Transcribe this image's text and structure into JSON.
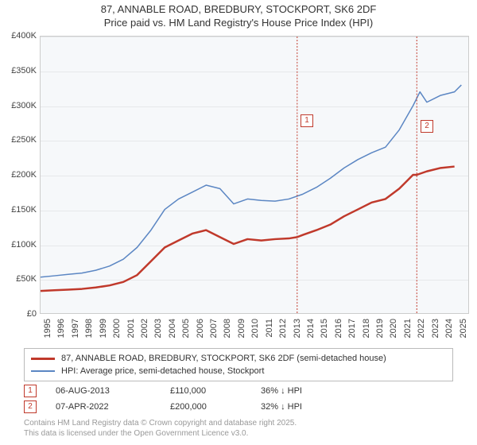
{
  "title_line1": "87, ANNABLE ROAD, BREDBURY, STOCKPORT, SK6 2DF",
  "title_line2": "Price paid vs. HM Land Registry's House Price Index (HPI)",
  "chart": {
    "type": "line",
    "background_color": "#f6f8fa",
    "grid_color": "#e6e8ea",
    "border_color": "#cccccc",
    "xlim": [
      1995,
      2026
    ],
    "ylim": [
      0,
      400000
    ],
    "ytick_step": 50000,
    "y_ticks": [
      "£0",
      "£50K",
      "£100K",
      "£150K",
      "£200K",
      "£250K",
      "£300K",
      "£350K",
      "£400K"
    ],
    "x_ticks": [
      "1995",
      "1996",
      "1997",
      "1998",
      "1999",
      "2000",
      "2001",
      "2002",
      "2003",
      "2004",
      "2005",
      "2006",
      "2007",
      "2008",
      "2009",
      "2010",
      "2011",
      "2012",
      "2013",
      "2014",
      "2015",
      "2016",
      "2017",
      "2018",
      "2019",
      "2020",
      "2021",
      "2022",
      "2023",
      "2024",
      "2025"
    ],
    "series": [
      {
        "name": "price_paid",
        "label": "87, ANNABLE ROAD, BREDBURY, STOCKPORT, SK6 2DF (semi-detached house)",
        "color": "#c0392b",
        "line_width": 2.5,
        "data": [
          [
            1995,
            32000
          ],
          [
            1996,
            33000
          ],
          [
            1997,
            34000
          ],
          [
            1998,
            35000
          ],
          [
            1999,
            37000
          ],
          [
            2000,
            40000
          ],
          [
            2001,
            45000
          ],
          [
            2002,
            55000
          ],
          [
            2003,
            75000
          ],
          [
            2004,
            95000
          ],
          [
            2005,
            105000
          ],
          [
            2006,
            115000
          ],
          [
            2007,
            120000
          ],
          [
            2008,
            110000
          ],
          [
            2009,
            100000
          ],
          [
            2010,
            107000
          ],
          [
            2011,
            105000
          ],
          [
            2012,
            107000
          ],
          [
            2013,
            108000
          ],
          [
            2013.6,
            110000
          ],
          [
            2014,
            113000
          ],
          [
            2015,
            120000
          ],
          [
            2016,
            128000
          ],
          [
            2017,
            140000
          ],
          [
            2018,
            150000
          ],
          [
            2019,
            160000
          ],
          [
            2020,
            165000
          ],
          [
            2021,
            180000
          ],
          [
            2022,
            200000
          ],
          [
            2022.27,
            200000
          ],
          [
            2023,
            205000
          ],
          [
            2024,
            210000
          ],
          [
            2025,
            212000
          ]
        ]
      },
      {
        "name": "hpi",
        "label": "HPI: Average price, semi-detached house, Stockport",
        "color": "#5b86c3",
        "line_width": 1.5,
        "data": [
          [
            1995,
            52000
          ],
          [
            1996,
            54000
          ],
          [
            1997,
            56000
          ],
          [
            1998,
            58000
          ],
          [
            1999,
            62000
          ],
          [
            2000,
            68000
          ],
          [
            2001,
            78000
          ],
          [
            2002,
            95000
          ],
          [
            2003,
            120000
          ],
          [
            2004,
            150000
          ],
          [
            2005,
            165000
          ],
          [
            2006,
            175000
          ],
          [
            2007,
            185000
          ],
          [
            2008,
            180000
          ],
          [
            2009,
            158000
          ],
          [
            2010,
            165000
          ],
          [
            2011,
            163000
          ],
          [
            2012,
            162000
          ],
          [
            2013,
            165000
          ],
          [
            2014,
            172000
          ],
          [
            2015,
            182000
          ],
          [
            2016,
            195000
          ],
          [
            2017,
            210000
          ],
          [
            2018,
            222000
          ],
          [
            2019,
            232000
          ],
          [
            2020,
            240000
          ],
          [
            2021,
            265000
          ],
          [
            2022,
            300000
          ],
          [
            2022.5,
            320000
          ],
          [
            2023,
            305000
          ],
          [
            2024,
            315000
          ],
          [
            2025,
            320000
          ],
          [
            2025.5,
            330000
          ]
        ]
      }
    ],
    "markers": [
      {
        "n": "1",
        "x": 2013.6,
        "box_y": 0.28
      },
      {
        "n": "2",
        "x": 2022.27,
        "box_y": 0.3
      }
    ]
  },
  "legend": {
    "series1": "87, ANNABLE ROAD, BREDBURY, STOCKPORT, SK6 2DF (semi-detached house)",
    "series2": "HPI: Average price, semi-detached house, Stockport"
  },
  "transactions": [
    {
      "n": "1",
      "date": "06-AUG-2013",
      "price": "£110,000",
      "diff": "36% ↓ HPI"
    },
    {
      "n": "2",
      "date": "07-APR-2022",
      "price": "£200,000",
      "diff": "32% ↓ HPI"
    }
  ],
  "footer_line1": "Contains HM Land Registry data © Crown copyright and database right 2025.",
  "footer_line2": "This data is licensed under the Open Government Licence v3.0."
}
